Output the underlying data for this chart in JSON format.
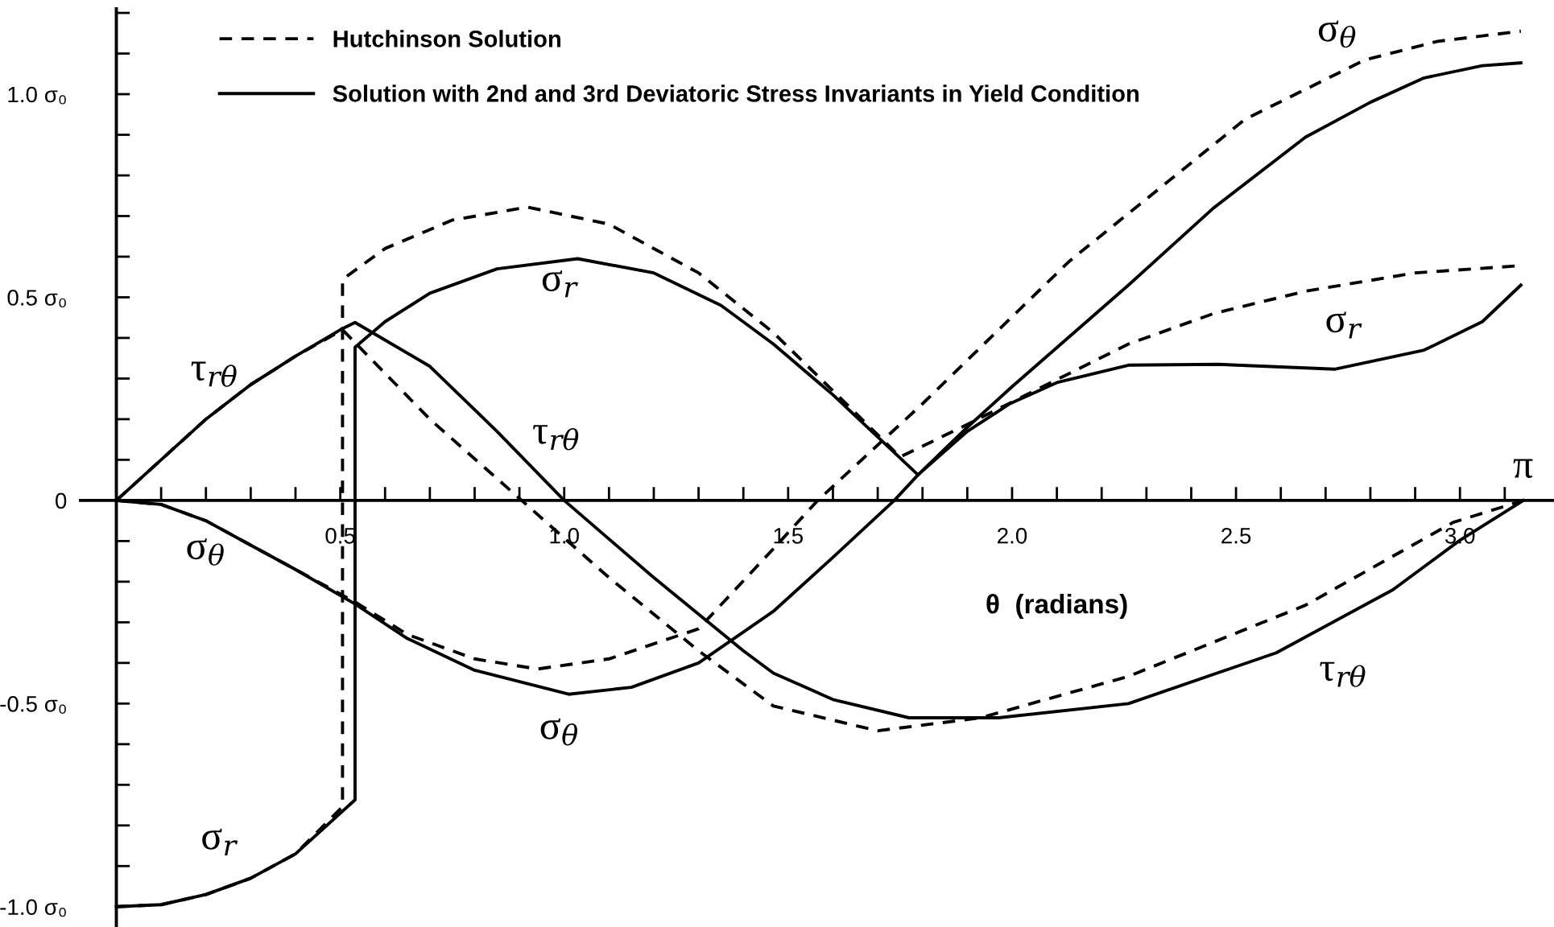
{
  "chart_data": {
    "type": "line",
    "xlabel": "θ  (radians)",
    "legend": "top left",
    "grid": false,
    "marker": "none",
    "xlim": [
      -0.08,
      3.21
    ],
    "ylim": [
      -1.05,
      1.21
    ],
    "xticks": [
      {
        "value": 0.1,
        "label": null
      },
      {
        "value": 0.2,
        "label": null
      },
      {
        "value": 0.3,
        "label": null
      },
      {
        "value": 0.4,
        "label": null
      },
      {
        "value": 0.5,
        "label": "0.5"
      },
      {
        "value": 0.6,
        "label": null
      },
      {
        "value": 0.7,
        "label": null
      },
      {
        "value": 0.8,
        "label": null
      },
      {
        "value": 0.9,
        "label": null
      },
      {
        "value": 1.0,
        "label": "1.0"
      },
      {
        "value": 1.1,
        "label": null
      },
      {
        "value": 1.2,
        "label": null
      },
      {
        "value": 1.3,
        "label": null
      },
      {
        "value": 1.4,
        "label": null
      },
      {
        "value": 1.5,
        "label": "1.5"
      },
      {
        "value": 1.6,
        "label": null
      },
      {
        "value": 1.7,
        "label": null
      },
      {
        "value": 1.8,
        "label": null
      },
      {
        "value": 1.9,
        "label": null
      },
      {
        "value": 2.0,
        "label": "2.0"
      },
      {
        "value": 2.1,
        "label": null
      },
      {
        "value": 2.2,
        "label": null
      },
      {
        "value": 2.3,
        "label": null
      },
      {
        "value": 2.4,
        "label": null
      },
      {
        "value": 2.5,
        "label": "2.5"
      },
      {
        "value": 2.6,
        "label": null
      },
      {
        "value": 2.7,
        "label": null
      },
      {
        "value": 2.8,
        "label": null
      },
      {
        "value": 2.9,
        "label": null
      },
      {
        "value": 3.0,
        "label": "3.0"
      },
      {
        "value": 3.1,
        "label": null
      }
    ],
    "yticks": [
      {
        "value": -1.0,
        "label": "-1.0 σ₀"
      },
      {
        "value": -0.9,
        "label": null
      },
      {
        "value": -0.8,
        "label": null
      },
      {
        "value": -0.7,
        "label": null
      },
      {
        "value": -0.6,
        "label": null
      },
      {
        "value": -0.5,
        "label": "-0.5 σ₀"
      },
      {
        "value": -0.4,
        "label": null
      },
      {
        "value": -0.3,
        "label": null
      },
      {
        "value": -0.2,
        "label": null
      },
      {
        "value": -0.1,
        "label": null
      },
      {
        "value": 0,
        "label": "0"
      },
      {
        "value": 0.1,
        "label": null
      },
      {
        "value": 0.2,
        "label": null
      },
      {
        "value": 0.3,
        "label": null
      },
      {
        "value": 0.4,
        "label": null
      },
      {
        "value": 0.5,
        "label": "0.5 σ₀"
      },
      {
        "value": 0.6,
        "label": null
      },
      {
        "value": 0.7,
        "label": null
      },
      {
        "value": 0.8,
        "label": null
      },
      {
        "value": 0.9,
        "label": null
      },
      {
        "value": 1.0,
        "label": "1.0 σ₀"
      },
      {
        "value": 1.1,
        "label": null
      },
      {
        "value": 1.2,
        "label": null
      }
    ],
    "series": [
      {
        "name": "Hutchinson Solution",
        "color": "#000000",
        "line_style": "dashed",
        "x": [
          0,
          0.1,
          0.2,
          0.3,
          0.4,
          0.505,
          0.505,
          0.6,
          0.75,
          0.918,
          1.1,
          1.3,
          1.467,
          1.6,
          1.75,
          1.9,
          2.05,
          2.26,
          2.45,
          2.655,
          2.9,
          3.136
        ],
        "values": [
          -1.0,
          -0.995,
          -0.97,
          -0.93,
          -0.87,
          -0.754,
          0.544,
          0.62,
          0.69,
          0.722,
          0.68,
          0.56,
          0.413,
          0.27,
          0.107,
          0.187,
          0.27,
          0.385,
          0.46,
          0.515,
          0.56,
          0.578
        ]
      },
      {
        "color": "#000000",
        "line_style": "dashed",
        "x": [
          0,
          0.1,
          0.2,
          0.3,
          0.4,
          0.533,
          0.65,
          0.8,
          0.94,
          1.1,
          1.3,
          1.467,
          1.566,
          1.8,
          2.127,
          2.52,
          2.787,
          2.95,
          3.136
        ],
        "values": [
          0,
          -0.01,
          -0.05,
          -0.11,
          -0.17,
          -0.25,
          -0.33,
          -0.39,
          -0.415,
          -0.39,
          -0.316,
          -0.119,
          0,
          0.238,
          0.588,
          0.938,
          1.084,
          1.13,
          1.155
        ]
      },
      {
        "color": "#000000",
        "line_style": "dashed",
        "x": [
          0,
          0.1,
          0.2,
          0.3,
          0.4,
          0.505,
          0.7,
          0.905,
          1.1,
          1.3,
          1.467,
          1.7,
          1.93,
          2.26,
          2.655,
          2.985,
          3.1416
        ],
        "values": [
          0,
          0.1,
          0.2,
          0.285,
          0.355,
          0.42,
          0.2,
          0,
          -0.19,
          -0.37,
          -0.506,
          -0.567,
          -0.535,
          -0.433,
          -0.258,
          -0.054,
          0
        ]
      },
      {
        "name": "Solution with 2nd and 3rd Deviatoric Stress Invariants in Yield Condition",
        "color": "#000000",
        "line_style": "solid",
        "x": [
          0,
          0.1,
          0.2,
          0.3,
          0.4,
          0.5,
          0.533,
          0.533,
          0.6,
          0.7,
          0.85,
          1.03,
          1.2,
          1.35,
          1.467,
          1.6,
          1.79,
          1.9,
          1.995,
          2.1,
          2.26,
          2.46,
          2.72,
          2.92,
          3.05,
          3.136
        ],
        "values": [
          -1.0,
          -0.995,
          -0.97,
          -0.93,
          -0.87,
          -0.77,
          -0.737,
          0.377,
          0.44,
          0.51,
          0.57,
          0.595,
          0.56,
          0.48,
          0.385,
          0.26,
          0.063,
          0.17,
          0.238,
          0.29,
          0.333,
          0.335,
          0.323,
          0.37,
          0.44,
          0.53
        ]
      },
      {
        "color": "#000000",
        "line_style": "solid",
        "x": [
          0,
          0.1,
          0.2,
          0.3,
          0.4,
          0.533,
          0.65,
          0.8,
          1.01,
          1.15,
          1.3,
          1.467,
          1.6,
          1.737,
          1.79,
          1.9,
          2.0,
          2.26,
          2.45,
          2.655,
          2.8,
          2.92,
          3.05,
          3.136
        ],
        "values": [
          0,
          -0.01,
          -0.05,
          -0.11,
          -0.17,
          -0.255,
          -0.34,
          -0.418,
          -0.477,
          -0.46,
          -0.4,
          -0.273,
          -0.14,
          0,
          0.063,
          0.18,
          0.28,
          0.53,
          0.72,
          0.894,
          0.98,
          1.04,
          1.07,
          1.077
        ]
      },
      {
        "color": "#000000",
        "line_style": "solid",
        "x": [
          0,
          0.1,
          0.2,
          0.3,
          0.4,
          0.5,
          0.533,
          0.7,
          0.85,
          1.0,
          1.2,
          1.4,
          1.467,
          1.6,
          1.77,
          1.97,
          2.26,
          2.59,
          2.85,
          3.0,
          3.1416
        ],
        "values": [
          0,
          0.1,
          0.2,
          0.285,
          0.355,
          0.42,
          0.438,
          0.33,
          0.17,
          0,
          -0.19,
          -0.37,
          -0.425,
          -0.49,
          -0.535,
          -0.535,
          -0.5,
          -0.375,
          -0.22,
          -0.098,
          0
        ]
      }
    ],
    "annotations": [
      "σ$_{θ}$",
      "σ$_{r}$",
      "τ$_{rθ}$",
      "τ$_{rθ}$",
      "σ$_{θ}$",
      "σ$_{r}$",
      "τ$_{rθ}$",
      "σ$_{θ}$",
      "σ$_{r}$",
      "π"
    ]
  }
}
